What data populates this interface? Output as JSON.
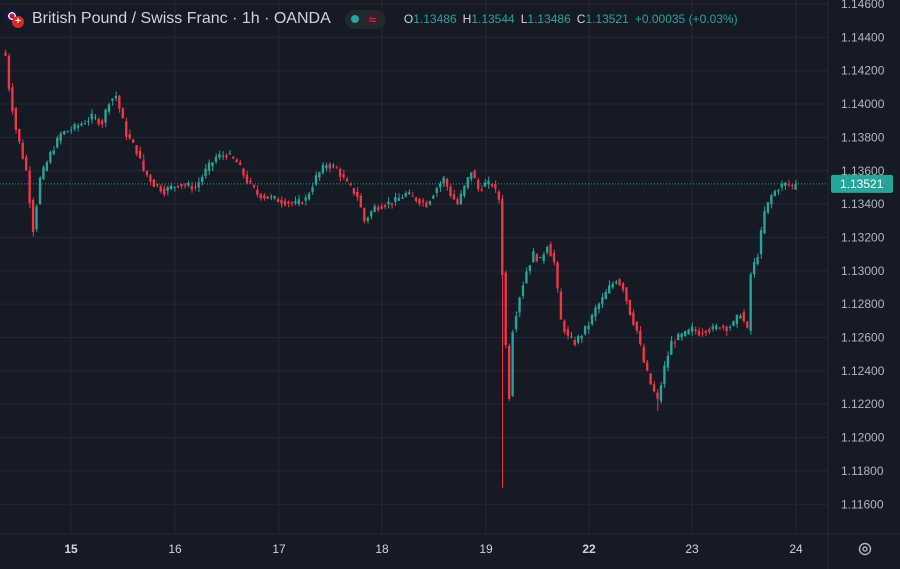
{
  "header": {
    "title": "British Pound / Swiss Franc · 1h · OANDA",
    "status_icon": "wave-icon",
    "ohlc": [
      {
        "label": "O",
        "value": "1.13486"
      },
      {
        "label": "H",
        "value": "1.13544"
      },
      {
        "label": "L",
        "value": "1.13486"
      },
      {
        "label": "C",
        "value": "1.13521"
      }
    ],
    "change": "+0.00035 (+0.03%)"
  },
  "colors": {
    "up": "#26a69a",
    "down": "#f23645",
    "background": "#161a25",
    "grid": "#242836",
    "text": "#d1d4dc",
    "price_label_bg": "#26a69a"
  },
  "chart_data": {
    "type": "candlestick",
    "symbol": "GBPCHF",
    "interval": "1h",
    "current_price": 1.13521,
    "current_price_label": "1.13521",
    "y_ticks": [
      "1.14600",
      "1.14400",
      "1.14200",
      "1.14000",
      "1.13800",
      "1.13600",
      "1.13400",
      "1.13200",
      "1.13000",
      "1.12800",
      "1.12600",
      "1.12400",
      "1.12200",
      "1.12000",
      "1.11800",
      "1.11600"
    ],
    "ylim": [
      1.1151,
      1.1466
    ],
    "x_ticks": [
      "15",
      "16",
      "17",
      "18",
      "19",
      "22",
      "23",
      "24"
    ],
    "x_tick_bold": [
      "15",
      "22"
    ],
    "grid": true,
    "close_path": [
      [
        0,
        1.1429
      ],
      [
        1,
        1.141
      ],
      [
        3,
        1.1385
      ],
      [
        6,
        1.136
      ],
      [
        8,
        1.1325
      ],
      [
        10,
        1.1355
      ],
      [
        13,
        1.137
      ],
      [
        16,
        1.1382
      ],
      [
        20,
        1.1386
      ],
      [
        25,
        1.1392
      ],
      [
        28,
        1.1389
      ],
      [
        30,
        1.1402
      ],
      [
        32,
        1.1405
      ],
      [
        35,
        1.1382
      ],
      [
        38,
        1.1372
      ],
      [
        40,
        1.136
      ],
      [
        43,
        1.1352
      ],
      [
        46,
        1.1348
      ],
      [
        50,
        1.1352
      ],
      [
        55,
        1.135
      ],
      [
        58,
        1.136
      ],
      [
        61,
        1.1368
      ],
      [
        64,
        1.137
      ],
      [
        67,
        1.1365
      ],
      [
        70,
        1.1354
      ],
      [
        73,
        1.1346
      ],
      [
        76,
        1.1344
      ],
      [
        80,
        1.1342
      ],
      [
        84,
        1.134
      ],
      [
        87,
        1.1343
      ],
      [
        90,
        1.1356
      ],
      [
        93,
        1.1364
      ],
      [
        96,
        1.1361
      ],
      [
        99,
        1.1352
      ],
      [
        102,
        1.1345
      ],
      [
        104,
        1.133
      ],
      [
        107,
        1.1338
      ],
      [
        110,
        1.134
      ],
      [
        113,
        1.1342
      ],
      [
        116,
        1.1346
      ],
      [
        119,
        1.1343
      ],
      [
        122,
        1.134
      ],
      [
        125,
        1.135
      ],
      [
        127,
        1.1355
      ],
      [
        129,
        1.1346
      ],
      [
        131,
        1.134
      ],
      [
        133,
        1.135
      ],
      [
        135,
        1.136
      ],
      [
        137,
        1.1349
      ],
      [
        139,
        1.1352
      ],
      [
        141,
        1.1352
      ],
      [
        143,
        1.1343
      ],
      [
        145,
        1.1255
      ],
      [
        146,
        1.1225
      ],
      [
        147,
        1.1265
      ],
      [
        149,
        1.1285
      ],
      [
        151,
        1.13
      ],
      [
        153,
        1.131
      ],
      [
        155,
        1.1306
      ],
      [
        157,
        1.1316
      ],
      [
        159,
        1.1305
      ],
      [
        161,
        1.127
      ],
      [
        163,
        1.126
      ],
      [
        165,
        1.1257
      ],
      [
        167,
        1.1262
      ],
      [
        169,
        1.1268
      ],
      [
        171,
        1.1277
      ],
      [
        173,
        1.1283
      ],
      [
        175,
        1.129
      ],
      [
        177,
        1.1295
      ],
      [
        179,
        1.129
      ],
      [
        181,
        1.1275
      ],
      [
        183,
        1.1264
      ],
      [
        185,
        1.1245
      ],
      [
        187,
        1.1232
      ],
      [
        189,
        1.1222
      ],
      [
        191,
        1.1242
      ],
      [
        193,
        1.1257
      ],
      [
        195,
        1.126
      ],
      [
        197,
        1.1262
      ],
      [
        199,
        1.1265
      ],
      [
        201,
        1.1263
      ],
      [
        203,
        1.1265
      ],
      [
        205,
        1.1265
      ],
      [
        207,
        1.1267
      ],
      [
        209,
        1.1266
      ],
      [
        211,
        1.1268
      ],
      [
        213,
        1.1275
      ],
      [
        215,
        1.1264
      ],
      [
        216,
        1.1298
      ],
      [
        218,
        1.131
      ],
      [
        220,
        1.1335
      ],
      [
        222,
        1.1345
      ],
      [
        224,
        1.135
      ],
      [
        226,
        1.1352
      ],
      [
        228,
        1.1351
      ],
      [
        229,
        1.1352
      ]
    ],
    "spikes": [
      {
        "index": 40,
        "high": 1.137
      },
      {
        "index": 144,
        "low": 1.117
      },
      {
        "index": 189,
        "low": 1.1216
      }
    ]
  },
  "icons": {
    "settings": "gear-icon"
  }
}
